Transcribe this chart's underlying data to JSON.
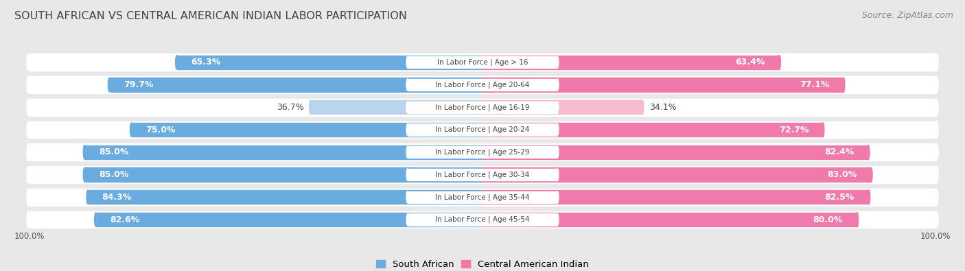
{
  "title": "SOUTH AFRICAN VS CENTRAL AMERICAN INDIAN LABOR PARTICIPATION",
  "source": "Source: ZipAtlas.com",
  "categories": [
    "In Labor Force | Age > 16",
    "In Labor Force | Age 20-64",
    "In Labor Force | Age 16-19",
    "In Labor Force | Age 20-24",
    "In Labor Force | Age 25-29",
    "In Labor Force | Age 30-34",
    "In Labor Force | Age 35-44",
    "In Labor Force | Age 45-54"
  ],
  "south_african": [
    65.3,
    79.7,
    36.7,
    75.0,
    85.0,
    85.0,
    84.3,
    82.6
  ],
  "central_american": [
    63.4,
    77.1,
    34.1,
    72.7,
    82.4,
    83.0,
    82.5,
    80.0
  ],
  "sa_colors": [
    "#6aabe0",
    "#6aabe0",
    "#b8d4ee",
    "#6aabe0",
    "#6aabe0",
    "#6aabe0",
    "#6aabe0",
    "#6aabe0"
  ],
  "ca_colors": [
    "#f07aaa",
    "#f07aaa",
    "#f5bbd0",
    "#f07aaa",
    "#f07aaa",
    "#f07aaa",
    "#f07aaa",
    "#f07aaa"
  ],
  "sa_legend_color": "#6aabe0",
  "ca_legend_color": "#f07aaa",
  "bg_color": "#e8e8e8",
  "row_bg_color": "#f5f5f5",
  "max_val": 100.0,
  "label_fontsize": 9.0,
  "title_fontsize": 11.5,
  "source_fontsize": 9.0,
  "axis_fontsize": 8.5,
  "legend_fontsize": 9.5
}
